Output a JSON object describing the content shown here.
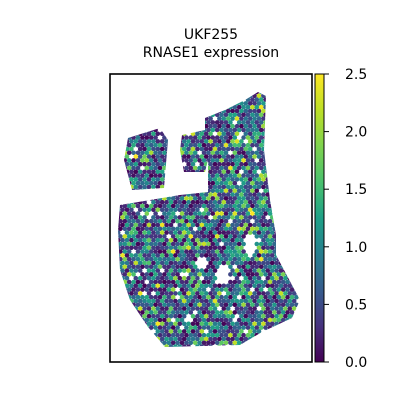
{
  "chart_data": {
    "type": "scatter",
    "title": "UKF255",
    "subtitle": "RNASE1 expression",
    "colormap": "viridis",
    "colorbar": {
      "range": [
        0.0,
        2.5
      ],
      "ticks": [
        "0.0",
        "0.5",
        "1.0",
        "1.5",
        "2.0",
        "2.5"
      ],
      "tick_values": [
        0.0,
        0.5,
        1.0,
        1.5,
        2.0,
        2.5
      ]
    },
    "axes": {
      "xticks": false,
      "yticks": false,
      "grid": false,
      "frame": true
    },
    "colors": {
      "low": "#440154",
      "mid": "#21918c",
      "high": "#fde725"
    }
  }
}
